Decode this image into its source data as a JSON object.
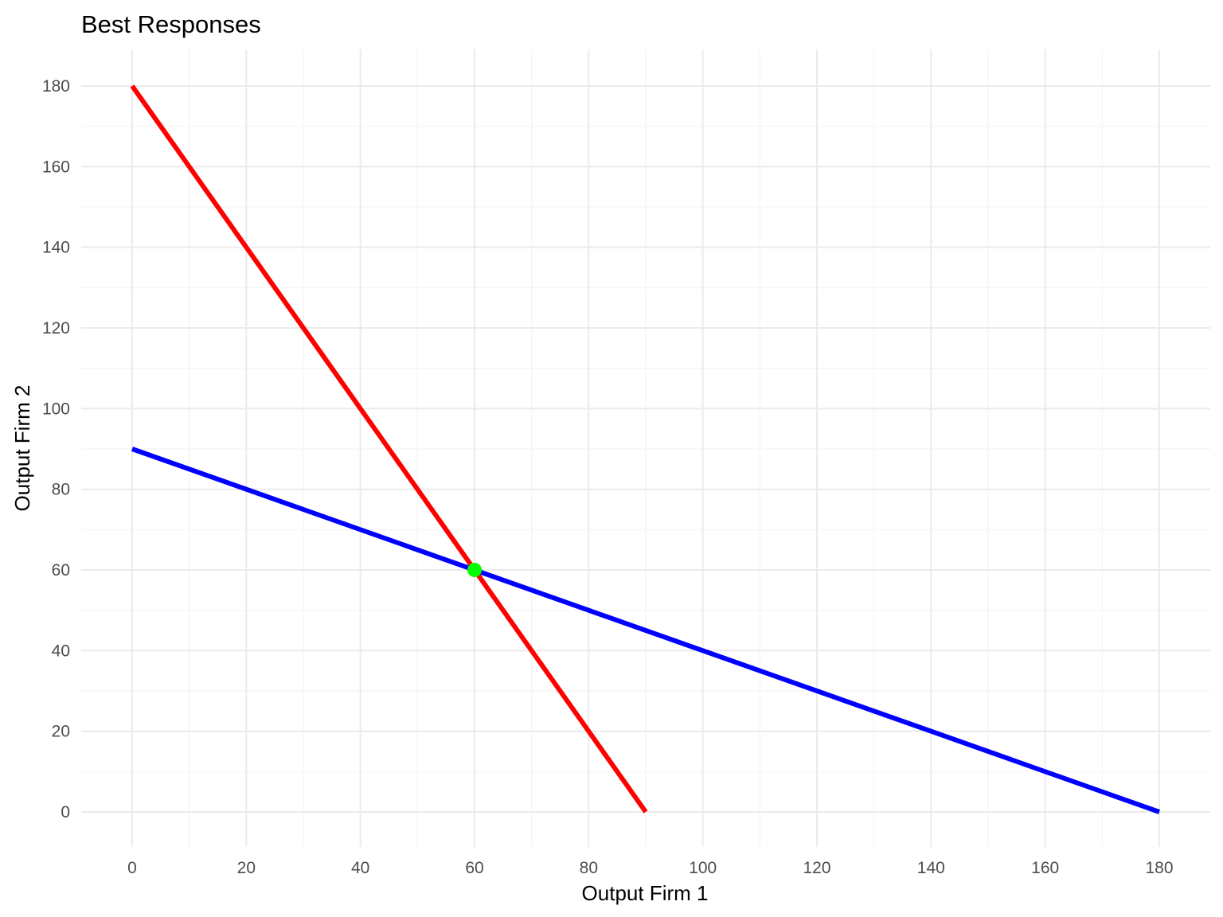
{
  "chart_data": {
    "type": "line",
    "title": "Best Responses",
    "xlabel": "Output Firm 1",
    "ylabel": "Output Firm 2",
    "xlim": [
      -9,
      186
    ],
    "ylim": [
      -9,
      189
    ],
    "x_ticks": [
      0,
      20,
      40,
      60,
      80,
      100,
      120,
      140,
      160,
      180
    ],
    "y_ticks": [
      0,
      20,
      40,
      60,
      80,
      100,
      120,
      140,
      160,
      180
    ],
    "grid": true,
    "legend": "none",
    "series": [
      {
        "color": "#ff0000",
        "points": [
          [
            0,
            180
          ],
          [
            90,
            0
          ]
        ]
      },
      {
        "color": "#0000ff",
        "points": [
          [
            0,
            90
          ],
          [
            180,
            0
          ]
        ]
      }
    ],
    "markers": [
      {
        "x": 60,
        "y": 60,
        "color": "#00ff00"
      }
    ]
  }
}
